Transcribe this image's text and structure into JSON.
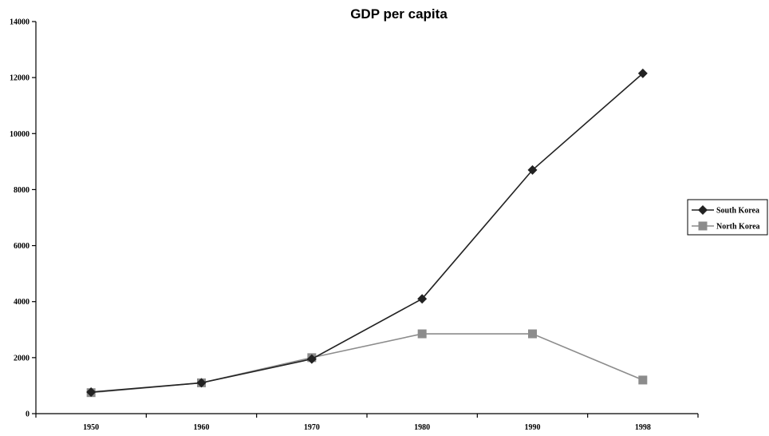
{
  "chart_data": {
    "type": "line",
    "title": "GDP per capita",
    "xlabel": "",
    "ylabel": "",
    "categories": [
      "1950",
      "1960",
      "1970",
      "1980",
      "1990",
      "1998"
    ],
    "ylim": [
      0,
      14000
    ],
    "yticks": [
      "0",
      "2000",
      "4000",
      "6000",
      "8000",
      "10000",
      "12000",
      "14000"
    ],
    "grid": false,
    "legend": "right",
    "series": [
      {
        "name": "South Korea",
        "values": [
          770,
          1100,
          1950,
          4100,
          8700,
          12150
        ],
        "color": "#222222",
        "marker": "diamond"
      },
      {
        "name": "North Korea",
        "values": [
          750,
          1100,
          2000,
          2850,
          2850,
          1200
        ],
        "color": "#8c8c8c",
        "marker": "square"
      }
    ]
  }
}
